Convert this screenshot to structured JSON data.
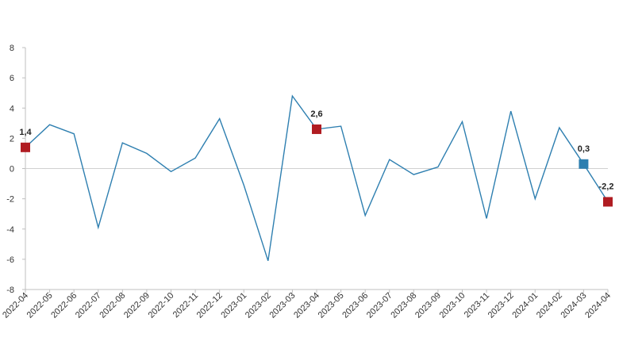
{
  "chart_data": {
    "type": "line",
    "title": "",
    "xlabel": "",
    "ylabel": "",
    "ylim": [
      -8,
      8
    ],
    "yticks": [
      8,
      6,
      4,
      2,
      0,
      -2,
      -4,
      -6,
      -8
    ],
    "categories": [
      "2022-04",
      "2022-05",
      "2022-06",
      "2022-07",
      "2022-08",
      "2022-09",
      "2022-10",
      "2022-11",
      "2022-12",
      "2023-01",
      "2023-02",
      "2023-03",
      "2023-04",
      "2023-05",
      "2023-06",
      "2023-07",
      "2023-08",
      "2023-09",
      "2023-10",
      "2023-11",
      "2023-12",
      "2024-01",
      "2024-02",
      "2024-03",
      "2024-04"
    ],
    "series": [
      {
        "values": [
          1.4,
          2.9,
          2.3,
          -3.9,
          1.7,
          1.0,
          -0.2,
          0.7,
          3.3,
          -1.1,
          -6.1,
          4.8,
          2.6,
          2.8,
          -3.1,
          0.6,
          -0.4,
          0.1,
          3.1,
          -3.3,
          3.8,
          -2.0,
          2.7,
          0.3,
          -2.2
        ],
        "color": "#2e7fb0"
      }
    ],
    "highlights": [
      {
        "category": "2022-04",
        "value": 1.4,
        "label": "1,4",
        "color": "#b01c22"
      },
      {
        "category": "2023-04",
        "value": 2.6,
        "label": "2,6",
        "color": "#b01c22"
      },
      {
        "category": "2024-03",
        "value": 0.3,
        "label": "0,3",
        "color": "#2e7fb0"
      },
      {
        "category": "2024-04",
        "value": -2.2,
        "label": "-2,2",
        "color": "#b01c22"
      }
    ],
    "grid": false,
    "legend": "none"
  }
}
